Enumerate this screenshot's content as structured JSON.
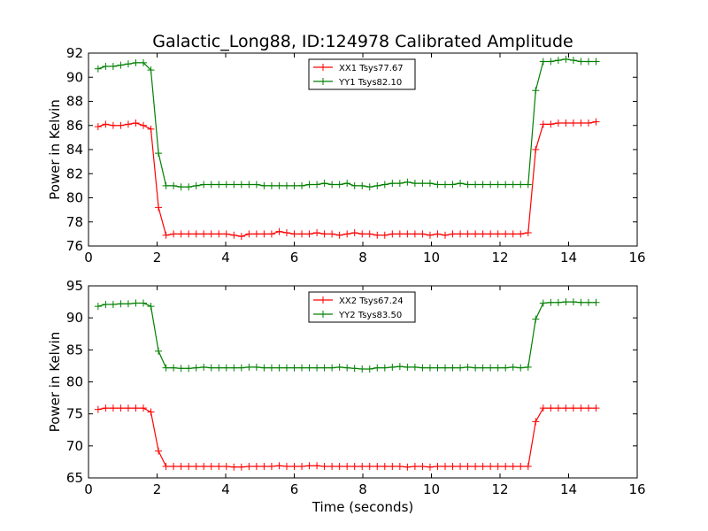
{
  "title": "Galactic_Long88, ID:124978 Calibrated Amplitude",
  "chart_data": [
    {
      "type": "line",
      "ylabel": "Power in Kelvin",
      "xlabel": "",
      "xlim": [
        0,
        16
      ],
      "ylim": [
        76,
        92
      ],
      "xticks": [
        0,
        2,
        4,
        6,
        8,
        10,
        12,
        14,
        16
      ],
      "yticks": [
        76,
        78,
        80,
        82,
        84,
        86,
        88,
        90,
        92
      ],
      "grid": false,
      "legend_position": "top-center",
      "x": [
        0.28,
        0.5,
        0.72,
        0.94,
        1.16,
        1.38,
        1.6,
        1.82,
        2.04,
        2.26,
        2.48,
        2.7,
        2.92,
        3.14,
        3.36,
        3.58,
        3.8,
        4.02,
        4.24,
        4.46,
        4.68,
        4.9,
        5.12,
        5.34,
        5.56,
        5.78,
        6.0,
        6.22,
        6.44,
        6.66,
        6.88,
        7.1,
        7.32,
        7.54,
        7.76,
        7.98,
        8.2,
        8.42,
        8.64,
        8.86,
        9.08,
        9.3,
        9.52,
        9.74,
        9.96,
        10.18,
        10.4,
        10.62,
        10.84,
        11.06,
        11.28,
        11.5,
        11.72,
        11.94,
        12.16,
        12.38,
        12.6,
        12.82,
        13.04,
        13.26,
        13.48,
        13.7,
        13.92,
        14.14,
        14.36,
        14.58,
        14.8
      ],
      "series": [
        {
          "name": "XX1 Tsys77.67",
          "color": "#ff0000",
          "values": [
            85.9,
            86.1,
            86.0,
            86.0,
            86.1,
            86.2,
            86.0,
            85.7,
            79.2,
            76.9,
            77.0,
            77.0,
            77.0,
            77.0,
            77.0,
            77.0,
            77.0,
            77.0,
            76.9,
            76.8,
            77.0,
            77.0,
            77.0,
            77.0,
            77.2,
            77.1,
            77.0,
            77.0,
            77.0,
            77.1,
            77.0,
            77.0,
            76.9,
            77.0,
            77.1,
            77.0,
            77.0,
            76.9,
            76.9,
            77.0,
            77.0,
            77.0,
            77.0,
            77.0,
            76.9,
            77.0,
            76.9,
            77.0,
            77.0,
            77.0,
            77.0,
            77.0,
            77.0,
            77.0,
            77.0,
            77.0,
            77.0,
            77.1,
            84.0,
            86.1,
            86.1,
            86.2,
            86.2,
            86.2,
            86.2,
            86.2,
            86.3
          ]
        },
        {
          "name": "YY1 Tsys82.10",
          "color": "#008000",
          "values": [
            90.7,
            90.9,
            90.9,
            91.0,
            91.1,
            91.2,
            91.2,
            90.6,
            83.7,
            81.0,
            81.0,
            80.9,
            80.9,
            81.0,
            81.1,
            81.1,
            81.1,
            81.1,
            81.1,
            81.1,
            81.1,
            81.1,
            81.0,
            81.0,
            81.0,
            81.0,
            81.0,
            81.0,
            81.1,
            81.1,
            81.2,
            81.1,
            81.1,
            81.2,
            81.0,
            81.0,
            80.9,
            81.0,
            81.1,
            81.2,
            81.2,
            81.3,
            81.2,
            81.2,
            81.2,
            81.1,
            81.1,
            81.1,
            81.2,
            81.1,
            81.1,
            81.1,
            81.1,
            81.1,
            81.1,
            81.1,
            81.1,
            81.1,
            88.9,
            91.3,
            91.3,
            91.4,
            91.5,
            91.4,
            91.3,
            91.3,
            91.3
          ]
        }
      ]
    },
    {
      "type": "line",
      "ylabel": "Power in Kelvin",
      "xlabel": "Time (seconds)",
      "xlim": [
        0,
        16
      ],
      "ylim": [
        65,
        95
      ],
      "xticks": [
        0,
        2,
        4,
        6,
        8,
        10,
        12,
        14,
        16
      ],
      "yticks": [
        65,
        70,
        75,
        80,
        85,
        90,
        95
      ],
      "grid": false,
      "legend_position": "top-center",
      "x": [
        0.28,
        0.5,
        0.72,
        0.94,
        1.16,
        1.38,
        1.6,
        1.82,
        2.04,
        2.26,
        2.48,
        2.7,
        2.92,
        3.14,
        3.36,
        3.58,
        3.8,
        4.02,
        4.24,
        4.46,
        4.68,
        4.9,
        5.12,
        5.34,
        5.56,
        5.78,
        6.0,
        6.22,
        6.44,
        6.66,
        6.88,
        7.1,
        7.32,
        7.54,
        7.76,
        7.98,
        8.2,
        8.42,
        8.64,
        8.86,
        9.08,
        9.3,
        9.52,
        9.74,
        9.96,
        10.18,
        10.4,
        10.62,
        10.84,
        11.06,
        11.28,
        11.5,
        11.72,
        11.94,
        12.16,
        12.38,
        12.6,
        12.82,
        13.04,
        13.26,
        13.48,
        13.7,
        13.92,
        14.14,
        14.36,
        14.58,
        14.8
      ],
      "series": [
        {
          "name": "XX2 Tsys67.24",
          "color": "#ff0000",
          "values": [
            75.7,
            75.9,
            75.9,
            75.9,
            75.9,
            75.9,
            75.9,
            75.3,
            69.2,
            66.8,
            66.8,
            66.8,
            66.8,
            66.8,
            66.8,
            66.8,
            66.8,
            66.8,
            66.7,
            66.7,
            66.8,
            66.8,
            66.8,
            66.8,
            66.9,
            66.8,
            66.8,
            66.8,
            66.9,
            66.9,
            66.8,
            66.8,
            66.8,
            66.8,
            66.8,
            66.8,
            66.8,
            66.8,
            66.8,
            66.8,
            66.8,
            66.7,
            66.8,
            66.8,
            66.7,
            66.8,
            66.8,
            66.8,
            66.8,
            66.8,
            66.8,
            66.8,
            66.8,
            66.8,
            66.8,
            66.8,
            66.8,
            66.8,
            73.8,
            75.9,
            75.9,
            75.9,
            75.9,
            75.9,
            75.9,
            75.9,
            75.9
          ]
        },
        {
          "name": "YY2 Tsys83.50",
          "color": "#008000",
          "values": [
            91.8,
            92.1,
            92.1,
            92.2,
            92.2,
            92.3,
            92.3,
            91.8,
            84.8,
            82.2,
            82.2,
            82.1,
            82.1,
            82.2,
            82.3,
            82.2,
            82.2,
            82.2,
            82.2,
            82.2,
            82.3,
            82.3,
            82.2,
            82.2,
            82.2,
            82.2,
            82.2,
            82.2,
            82.2,
            82.2,
            82.2,
            82.2,
            82.3,
            82.2,
            82.1,
            82.0,
            82.0,
            82.2,
            82.2,
            82.3,
            82.4,
            82.3,
            82.3,
            82.2,
            82.2,
            82.2,
            82.2,
            82.2,
            82.2,
            82.3,
            82.2,
            82.2,
            82.2,
            82.2,
            82.2,
            82.3,
            82.2,
            82.3,
            89.8,
            92.3,
            92.4,
            92.4,
            92.5,
            92.5,
            92.4,
            92.4,
            92.4
          ]
        }
      ]
    }
  ]
}
